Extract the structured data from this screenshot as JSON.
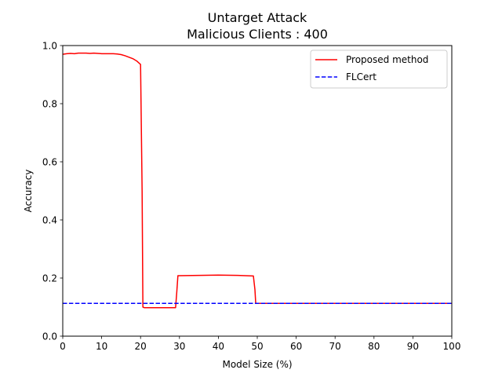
{
  "chart_data": {
    "type": "line",
    "title_lines": [
      "Untarget Attack",
      "Malicious Clients : 400"
    ],
    "xlabel": "Model Size (%)",
    "ylabel": "Accuracy",
    "xlim": [
      0,
      100
    ],
    "ylim": [
      0,
      1.0
    ],
    "x_ticks": [
      "0",
      "10",
      "20",
      "30",
      "40",
      "50",
      "60",
      "70",
      "80",
      "90",
      "100"
    ],
    "y_ticks": [
      "0.0",
      "0.2",
      "0.4",
      "0.6",
      "0.8",
      "1.0"
    ],
    "grid": false,
    "legend_position": "top-right",
    "series": [
      {
        "name": "Proposed method",
        "color": "#ff0000",
        "style": "solid",
        "x": [
          0,
          1,
          2,
          3,
          4,
          5,
          6,
          7,
          8,
          9,
          10,
          11,
          12,
          13,
          14,
          15,
          16,
          17,
          18,
          19,
          20,
          20.4,
          20.6,
          21,
          22,
          24,
          26,
          28,
          29,
          29.3,
          29.6,
          30,
          35,
          40,
          45,
          49,
          49.4,
          49.6,
          50,
          60,
          70,
          80,
          90,
          100
        ],
        "y": [
          0.97,
          0.972,
          0.973,
          0.972,
          0.974,
          0.974,
          0.974,
          0.973,
          0.974,
          0.973,
          0.972,
          0.972,
          0.972,
          0.972,
          0.971,
          0.969,
          0.965,
          0.96,
          0.955,
          0.947,
          0.935,
          0.5,
          0.1,
          0.098,
          0.098,
          0.098,
          0.098,
          0.098,
          0.098,
          0.15,
          0.208,
          0.208,
          0.209,
          0.21,
          0.209,
          0.207,
          0.16,
          0.113,
          0.113,
          0.113,
          0.113,
          0.113,
          0.113,
          0.113
        ]
      },
      {
        "name": "FLCert",
        "color": "#0000ff",
        "style": "dashed",
        "x": [
          0,
          100
        ],
        "y": [
          0.113,
          0.113
        ]
      }
    ]
  }
}
